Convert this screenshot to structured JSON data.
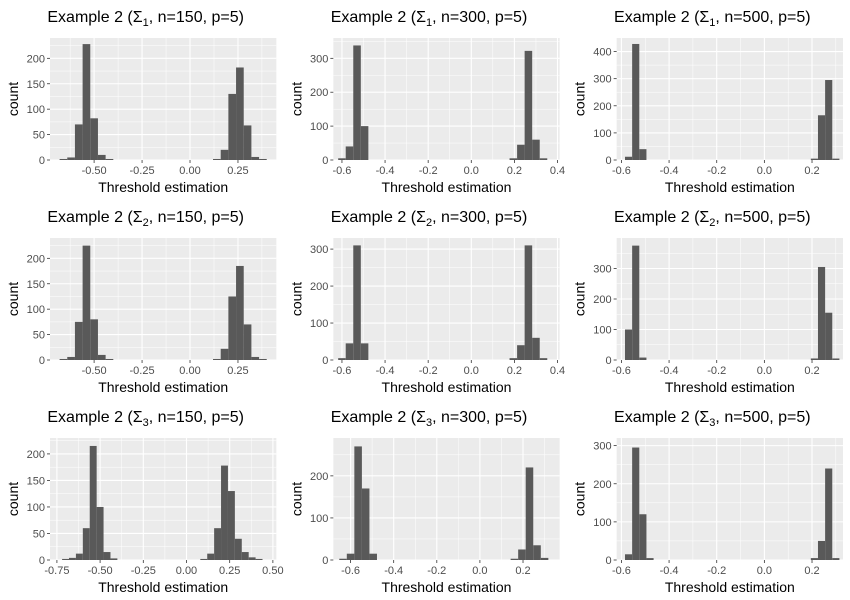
{
  "chart_data": [
    {
      "type": "bar",
      "title_pre": "Example 2 (",
      "sigma_sub": "1",
      "title_post": ", n=150, p=5)",
      "xlabel": "Threshold estimation",
      "ylabel": "count",
      "xlim": [
        -0.73,
        0.45
      ],
      "ylim": [
        0,
        240
      ],
      "xticks": [
        -0.5,
        -0.25,
        0.0,
        0.25
      ],
      "xtick_labels": [
        "-0.50",
        "-0.25",
        "0.00",
        "0.25"
      ],
      "yticks": [
        0,
        50,
        100,
        150,
        200
      ],
      "ytick_labels": [
        "0",
        "50",
        "100",
        "150",
        "200"
      ],
      "bin_width": 0.04,
      "bin_centers": [
        -0.66,
        -0.62,
        -0.58,
        -0.54,
        -0.5,
        -0.46,
        -0.42,
        0.14,
        0.18,
        0.22,
        0.26,
        0.3,
        0.34,
        0.38
      ],
      "values": [
        2,
        5,
        70,
        228,
        82,
        10,
        2,
        2,
        20,
        130,
        182,
        68,
        6,
        2
      ]
    },
    {
      "type": "bar",
      "title_pre": "Example 2 (",
      "sigma_sub": "1",
      "title_post": ", n=300, p=5)",
      "xlabel": "Threshold estimation",
      "ylabel": "count",
      "xlim": [
        -0.64,
        0.41
      ],
      "ylim": [
        0,
        360
      ],
      "xticks": [
        -0.6,
        -0.4,
        -0.2,
        0.0,
        0.2,
        0.4
      ],
      "xtick_labels": [
        "-0.6",
        "-0.4",
        "-0.2",
        "0.0",
        "0.2",
        "0.4"
      ],
      "yticks": [
        0,
        100,
        200,
        300
      ],
      "ytick_labels": [
        "0",
        "100",
        "200",
        "300"
      ],
      "bin_width": 0.035,
      "bin_centers": [
        -0.6,
        -0.565,
        -0.53,
        -0.495,
        0.195,
        0.23,
        0.265,
        0.3,
        0.335
      ],
      "values": [
        5,
        40,
        338,
        100,
        5,
        45,
        322,
        60,
        5
      ]
    },
    {
      "type": "bar",
      "title_pre": "Example 2 (",
      "sigma_sub": "1",
      "title_post": ", n=500, p=5)",
      "xlabel": "Threshold estimation",
      "ylabel": "count",
      "xlim": [
        -0.62,
        0.33
      ],
      "ylim": [
        0,
        450
      ],
      "xticks": [
        -0.6,
        -0.4,
        -0.2,
        0.0,
        0.2
      ],
      "xtick_labels": [
        "-0.6",
        "-0.4",
        "-0.2",
        "0.0",
        "0.2"
      ],
      "yticks": [
        0,
        100,
        200,
        300,
        400
      ],
      "ytick_labels": [
        "0",
        "100",
        "200",
        "300",
        "400"
      ],
      "bin_width": 0.03,
      "bin_centers": [
        -0.57,
        -0.54,
        -0.51,
        0.21,
        0.24,
        0.27,
        0.3
      ],
      "values": [
        12,
        428,
        40,
        5,
        165,
        295,
        5
      ]
    },
    {
      "type": "bar",
      "title_pre": "Example 2 (",
      "sigma_sub": "2",
      "title_post": ", n=150, p=5)",
      "xlabel": "Threshold estimation",
      "ylabel": "count",
      "xlim": [
        -0.73,
        0.45
      ],
      "ylim": [
        0,
        240
      ],
      "xticks": [
        -0.5,
        -0.25,
        0.0,
        0.25
      ],
      "xtick_labels": [
        "-0.50",
        "-0.25",
        "0.00",
        "0.25"
      ],
      "yticks": [
        0,
        50,
        100,
        150,
        200
      ],
      "ytick_labels": [
        "0",
        "50",
        "100",
        "150",
        "200"
      ],
      "bin_width": 0.04,
      "bin_centers": [
        -0.66,
        -0.62,
        -0.58,
        -0.54,
        -0.5,
        -0.46,
        -0.42,
        0.14,
        0.18,
        0.22,
        0.26,
        0.3,
        0.34,
        0.38
      ],
      "values": [
        2,
        6,
        75,
        225,
        80,
        10,
        2,
        2,
        22,
        125,
        185,
        70,
        6,
        2
      ]
    },
    {
      "type": "bar",
      "title_pre": "Example 2 (",
      "sigma_sub": "2",
      "title_post": ", n=300, p=5)",
      "xlabel": "Threshold estimation",
      "ylabel": "count",
      "xlim": [
        -0.64,
        0.41
      ],
      "ylim": [
        0,
        330
      ],
      "xticks": [
        -0.6,
        -0.4,
        -0.2,
        0.0,
        0.2,
        0.4
      ],
      "xtick_labels": [
        "-0.6",
        "-0.4",
        "-0.2",
        "0.0",
        "0.2",
        "0.4"
      ],
      "yticks": [
        0,
        100,
        200,
        300
      ],
      "ytick_labels": [
        "0",
        "100",
        "200",
        "300"
      ],
      "bin_width": 0.035,
      "bin_centers": [
        -0.6,
        -0.565,
        -0.53,
        -0.495,
        0.195,
        0.23,
        0.265,
        0.3,
        0.335
      ],
      "values": [
        5,
        45,
        310,
        45,
        5,
        40,
        310,
        60,
        5
      ]
    },
    {
      "type": "bar",
      "title_pre": "Example 2 (",
      "sigma_sub": "2",
      "title_post": ", n=500, p=5)",
      "xlabel": "Threshold estimation",
      "ylabel": "count",
      "xlim": [
        -0.62,
        0.33
      ],
      "ylim": [
        0,
        400
      ],
      "xticks": [
        -0.6,
        -0.4,
        -0.2,
        0.0,
        0.2
      ],
      "xtick_labels": [
        "-0.6",
        "-0.4",
        "-0.2",
        "0.0",
        "0.2"
      ],
      "yticks": [
        0,
        100,
        200,
        300
      ],
      "ytick_labels": [
        "0",
        "100",
        "200",
        "300"
      ],
      "bin_width": 0.03,
      "bin_centers": [
        -0.57,
        -0.54,
        -0.51,
        0.21,
        0.24,
        0.27,
        0.3
      ],
      "values": [
        100,
        375,
        8,
        5,
        305,
        155,
        5
      ]
    },
    {
      "type": "bar",
      "title_pre": "Example 2 (",
      "sigma_sub": "3",
      "title_post": ", n=150, p=5)",
      "xlabel": "Threshold estimation",
      "ylabel": "count",
      "xlim": [
        -0.79,
        0.52
      ],
      "ylim": [
        0,
        230
      ],
      "xticks": [
        -0.75,
        -0.5,
        -0.25,
        0.0,
        0.25,
        0.5
      ],
      "xtick_labels": [
        "-0.75",
        "-0.50",
        "-0.25",
        "0.00",
        "0.25",
        "0.50"
      ],
      "yticks": [
        0,
        50,
        100,
        150,
        200
      ],
      "ytick_labels": [
        "0",
        "50",
        "100",
        "150",
        "200"
      ],
      "bin_width": 0.04,
      "bin_centers": [
        -0.7,
        -0.66,
        -0.62,
        -0.58,
        -0.54,
        -0.5,
        -0.46,
        -0.42,
        0.1,
        0.14,
        0.18,
        0.22,
        0.26,
        0.3,
        0.34,
        0.38,
        0.42
      ],
      "values": [
        2,
        4,
        12,
        60,
        215,
        100,
        15,
        3,
        2,
        12,
        60,
        178,
        130,
        40,
        15,
        5,
        2
      ]
    },
    {
      "type": "bar",
      "title_pre": "Example 2 (",
      "sigma_sub": "3",
      "title_post": ", n=300, p=5)",
      "xlabel": "Threshold estimation",
      "ylabel": "count",
      "xlim": [
        -0.68,
        0.37
      ],
      "ylim": [
        0,
        290
      ],
      "xticks": [
        -0.6,
        -0.4,
        -0.2,
        0.0,
        0.2
      ],
      "xtick_labels": [
        "-0.6",
        "-0.4",
        "-0.2",
        "0.0",
        "0.2"
      ],
      "yticks": [
        0,
        100,
        200
      ],
      "ytick_labels": [
        "0",
        "100",
        "200"
      ],
      "bin_width": 0.035,
      "bin_centers": [
        -0.635,
        -0.6,
        -0.565,
        -0.53,
        -0.495,
        0.16,
        0.195,
        0.23,
        0.265,
        0.3
      ],
      "values": [
        3,
        15,
        270,
        170,
        15,
        3,
        25,
        220,
        35,
        5
      ]
    },
    {
      "type": "bar",
      "title_pre": "Example 2 (",
      "sigma_sub": "3",
      "title_post": ", n=500, p=5)",
      "xlabel": "Threshold estimation",
      "ylabel": "count",
      "xlim": [
        -0.62,
        0.33
      ],
      "ylim": [
        0,
        320
      ],
      "xticks": [
        -0.6,
        -0.4,
        -0.2,
        0.0,
        0.2
      ],
      "xtick_labels": [
        "-0.6",
        "-0.4",
        "-0.2",
        "0.0",
        "0.2"
      ],
      "yticks": [
        0,
        100,
        200,
        300
      ],
      "ytick_labels": [
        "0",
        "100",
        "200",
        "300"
      ],
      "bin_width": 0.03,
      "bin_centers": [
        -0.57,
        -0.54,
        -0.51,
        -0.48,
        0.21,
        0.24,
        0.27,
        0.3
      ],
      "values": [
        15,
        295,
        120,
        5,
        5,
        50,
        240,
        5
      ]
    }
  ]
}
